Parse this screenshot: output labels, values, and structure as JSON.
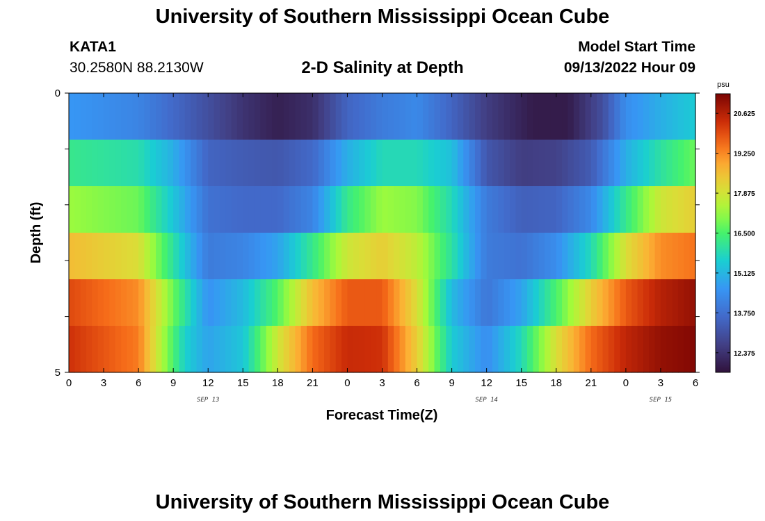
{
  "page": {
    "title_top": "University of Southern Mississippi Ocean Cube",
    "title_bottom": "University of Southern Mississippi Ocean Cube",
    "station_name": "KATA1",
    "station_coords": "30.2580N  88.2130W",
    "chart_title": "2-D Salinity at Depth",
    "model_label": "Model Start Time",
    "model_time": "09/13/2022 Hour 09"
  },
  "chart_data": {
    "type": "heatmap",
    "title": "2-D Salinity at Depth",
    "xlabel": "Forecast Time(Z)",
    "ylabel": "Depth (ft)",
    "x_hours": [
      0,
      3,
      6,
      9,
      12,
      15,
      18,
      21,
      24,
      27,
      30,
      33,
      36,
      39,
      42,
      45,
      48,
      51,
      54
    ],
    "x_tick_labels": [
      "0",
      "3",
      "6",
      "9",
      "12",
      "15",
      "18",
      "21",
      "0",
      "3",
      "6",
      "9",
      "12",
      "15",
      "18",
      "21",
      "0",
      "3",
      "6"
    ],
    "x_dates": [
      {
        "label": "SEP 13",
        "hour": 12
      },
      {
        "label": "SEP 14",
        "hour": 36
      },
      {
        "label": "SEP 15",
        "hour": 51
      }
    ],
    "y_tick_labels": [
      "0",
      "5"
    ],
    "ylim": [
      0,
      5
    ],
    "depth_layers": [
      0,
      1,
      2,
      3,
      4,
      5
    ],
    "colorbar": {
      "unit": "psu",
      "range": [
        11.7,
        21.3
      ],
      "tick_values": [
        12.375,
        13.75,
        15.125,
        16.5,
        17.875,
        19.25,
        20.625
      ],
      "tick_labels": [
        "12.375",
        "13.750",
        "15.125",
        "16.500",
        "17.875",
        "19.250",
        "20.625"
      ]
    },
    "layers": [
      {
        "depth": 0,
        "keys": [
          [
            0,
            14.6
          ],
          [
            6,
            14.2
          ],
          [
            10,
            13.4
          ],
          [
            15,
            12.4
          ],
          [
            18,
            12.0
          ],
          [
            21,
            12.3
          ],
          [
            24,
            13.5
          ],
          [
            27,
            14.0
          ],
          [
            30,
            14.3
          ],
          [
            33,
            13.5
          ],
          [
            36,
            12.6
          ],
          [
            40,
            11.9
          ],
          [
            43,
            11.9
          ],
          [
            46,
            13.0
          ],
          [
            48,
            14.4
          ],
          [
            51,
            15.0
          ],
          [
            54,
            15.5
          ]
        ]
      },
      {
        "depth": 1,
        "keys": [
          [
            0,
            16.2
          ],
          [
            6,
            15.9
          ],
          [
            9,
            15.0
          ],
          [
            12,
            13.5
          ],
          [
            15,
            13.3
          ],
          [
            18,
            13.2
          ],
          [
            21,
            13.6
          ],
          [
            24,
            15.0
          ],
          [
            27,
            15.8
          ],
          [
            30,
            15.8
          ],
          [
            33,
            15.3
          ],
          [
            36,
            13.2
          ],
          [
            39,
            12.6
          ],
          [
            42,
            12.7
          ],
          [
            45,
            13.3
          ],
          [
            48,
            15.0
          ],
          [
            51,
            16.0
          ],
          [
            54,
            16.8
          ]
        ]
      },
      {
        "depth": 2,
        "keys": [
          [
            0,
            17.2
          ],
          [
            6,
            16.8
          ],
          [
            9,
            15.4
          ],
          [
            12,
            13.8
          ],
          [
            15,
            13.6
          ],
          [
            18,
            13.6
          ],
          [
            21,
            14.2
          ],
          [
            24,
            16.2
          ],
          [
            27,
            17.2
          ],
          [
            30,
            17.0
          ],
          [
            33,
            15.8
          ],
          [
            36,
            14.0
          ],
          [
            39,
            13.4
          ],
          [
            42,
            13.5
          ],
          [
            45,
            14.3
          ],
          [
            48,
            16.2
          ],
          [
            51,
            17.8
          ],
          [
            54,
            18.3
          ]
        ]
      },
      {
        "depth": 3,
        "keys": [
          [
            0,
            18.6
          ],
          [
            6,
            18.0
          ],
          [
            9,
            16.0
          ],
          [
            12,
            14.0
          ],
          [
            15,
            14.2
          ],
          [
            18,
            14.8
          ],
          [
            21,
            16.2
          ],
          [
            24,
            17.8
          ],
          [
            27,
            18.3
          ],
          [
            30,
            17.6
          ],
          [
            33,
            16.0
          ],
          [
            36,
            14.0
          ],
          [
            39,
            13.8
          ],
          [
            42,
            14.4
          ],
          [
            45,
            15.8
          ],
          [
            48,
            18.0
          ],
          [
            51,
            19.2
          ],
          [
            54,
            19.5
          ]
        ]
      },
      {
        "depth": 4,
        "keys": [
          [
            0,
            20.0
          ],
          [
            6,
            19.2
          ],
          [
            9,
            16.8
          ],
          [
            12,
            14.5
          ],
          [
            15,
            15.2
          ],
          [
            18,
            16.6
          ],
          [
            21,
            18.6
          ],
          [
            24,
            19.8
          ],
          [
            27,
            19.8
          ],
          [
            30,
            18.0
          ],
          [
            33,
            15.2
          ],
          [
            36,
            13.9
          ],
          [
            39,
            14.8
          ],
          [
            42,
            16.5
          ],
          [
            45,
            18.3
          ],
          [
            48,
            19.8
          ],
          [
            51,
            20.6
          ],
          [
            54,
            21.0
          ]
        ]
      },
      {
        "depth": 5,
        "keys": [
          [
            0,
            20.3
          ],
          [
            6,
            19.4
          ],
          [
            8,
            17.4
          ],
          [
            10,
            15.6
          ],
          [
            12,
            14.8
          ],
          [
            15,
            15.4
          ],
          [
            18,
            17.8
          ],
          [
            21,
            19.6
          ],
          [
            24,
            20.4
          ],
          [
            27,
            20.3
          ],
          [
            30,
            18.3
          ],
          [
            33,
            15.5
          ],
          [
            36,
            14.4
          ],
          [
            39,
            15.8
          ],
          [
            42,
            18.0
          ],
          [
            45,
            19.6
          ],
          [
            48,
            20.5
          ],
          [
            51,
            21.0
          ],
          [
            54,
            21.2
          ]
        ]
      }
    ]
  },
  "axes": {
    "y_title": "Depth (ft)",
    "x_title": "Forecast Time(Z)"
  }
}
